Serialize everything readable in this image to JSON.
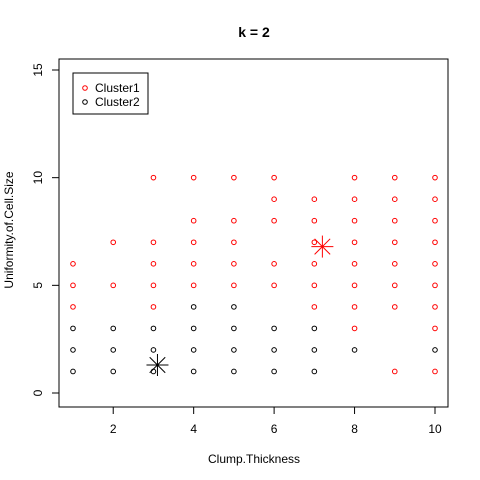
{
  "chart_data": {
    "type": "scatter",
    "title": "k = 2",
    "xlabel": "Clump.Thickness",
    "ylabel": "Uniformity.of.Cell.Size",
    "xlim": [
      1,
      10
    ],
    "ylim": [
      0,
      15
    ],
    "xticks": [
      2,
      4,
      6,
      8,
      10
    ],
    "yticks": [
      0,
      5,
      10,
      15
    ],
    "grid": false,
    "legend_position": "top-left",
    "series": [
      {
        "name": "Cluster1",
        "color": "#ff0000",
        "marker": "open-circle",
        "points": [
          [
            1,
            4
          ],
          [
            1,
            5
          ],
          [
            1,
            6
          ],
          [
            2,
            5
          ],
          [
            2,
            7
          ],
          [
            3,
            4
          ],
          [
            3,
            5
          ],
          [
            3,
            6
          ],
          [
            3,
            7
          ],
          [
            3,
            10
          ],
          [
            4,
            5
          ],
          [
            4,
            6
          ],
          [
            4,
            7
          ],
          [
            4,
            8
          ],
          [
            4,
            10
          ],
          [
            5,
            5
          ],
          [
            5,
            6
          ],
          [
            5,
            7
          ],
          [
            5,
            8
          ],
          [
            5,
            10
          ],
          [
            6,
            5
          ],
          [
            6,
            6
          ],
          [
            6,
            8
          ],
          [
            6,
            9
          ],
          [
            6,
            10
          ],
          [
            7,
            4
          ],
          [
            7,
            5
          ],
          [
            7,
            6
          ],
          [
            7,
            7
          ],
          [
            7,
            8
          ],
          [
            7,
            9
          ],
          [
            8,
            3
          ],
          [
            8,
            4
          ],
          [
            8,
            5
          ],
          [
            8,
            6
          ],
          [
            8,
            7
          ],
          [
            8,
            8
          ],
          [
            8,
            9
          ],
          [
            8,
            10
          ],
          [
            9,
            1
          ],
          [
            9,
            4
          ],
          [
            9,
            5
          ],
          [
            9,
            6
          ],
          [
            9,
            7
          ],
          [
            9,
            8
          ],
          [
            9,
            9
          ],
          [
            9,
            10
          ],
          [
            10,
            1
          ],
          [
            10,
            3
          ],
          [
            10,
            4
          ],
          [
            10,
            5
          ],
          [
            10,
            6
          ],
          [
            10,
            7
          ],
          [
            10,
            8
          ],
          [
            10,
            9
          ],
          [
            10,
            10
          ]
        ]
      },
      {
        "name": "Cluster2",
        "color": "#000000",
        "marker": "open-circle",
        "points": [
          [
            1,
            1
          ],
          [
            1,
            2
          ],
          [
            1,
            3
          ],
          [
            2,
            1
          ],
          [
            2,
            2
          ],
          [
            2,
            3
          ],
          [
            3,
            1
          ],
          [
            3,
            2
          ],
          [
            3,
            3
          ],
          [
            4,
            1
          ],
          [
            4,
            2
          ],
          [
            4,
            3
          ],
          [
            4,
            4
          ],
          [
            5,
            1
          ],
          [
            5,
            2
          ],
          [
            5,
            3
          ],
          [
            5,
            4
          ],
          [
            6,
            1
          ],
          [
            6,
            2
          ],
          [
            6,
            3
          ],
          [
            7,
            1
          ],
          [
            7,
            2
          ],
          [
            7,
            3
          ],
          [
            8,
            2
          ],
          [
            10,
            2
          ]
        ]
      }
    ],
    "centers": [
      {
        "series": "Cluster1",
        "color": "#ff0000",
        "marker": "star",
        "x": 7.2,
        "y": 6.8
      },
      {
        "series": "Cluster2",
        "color": "#000000",
        "marker": "star",
        "x": 3.1,
        "y": 1.3
      }
    ]
  }
}
